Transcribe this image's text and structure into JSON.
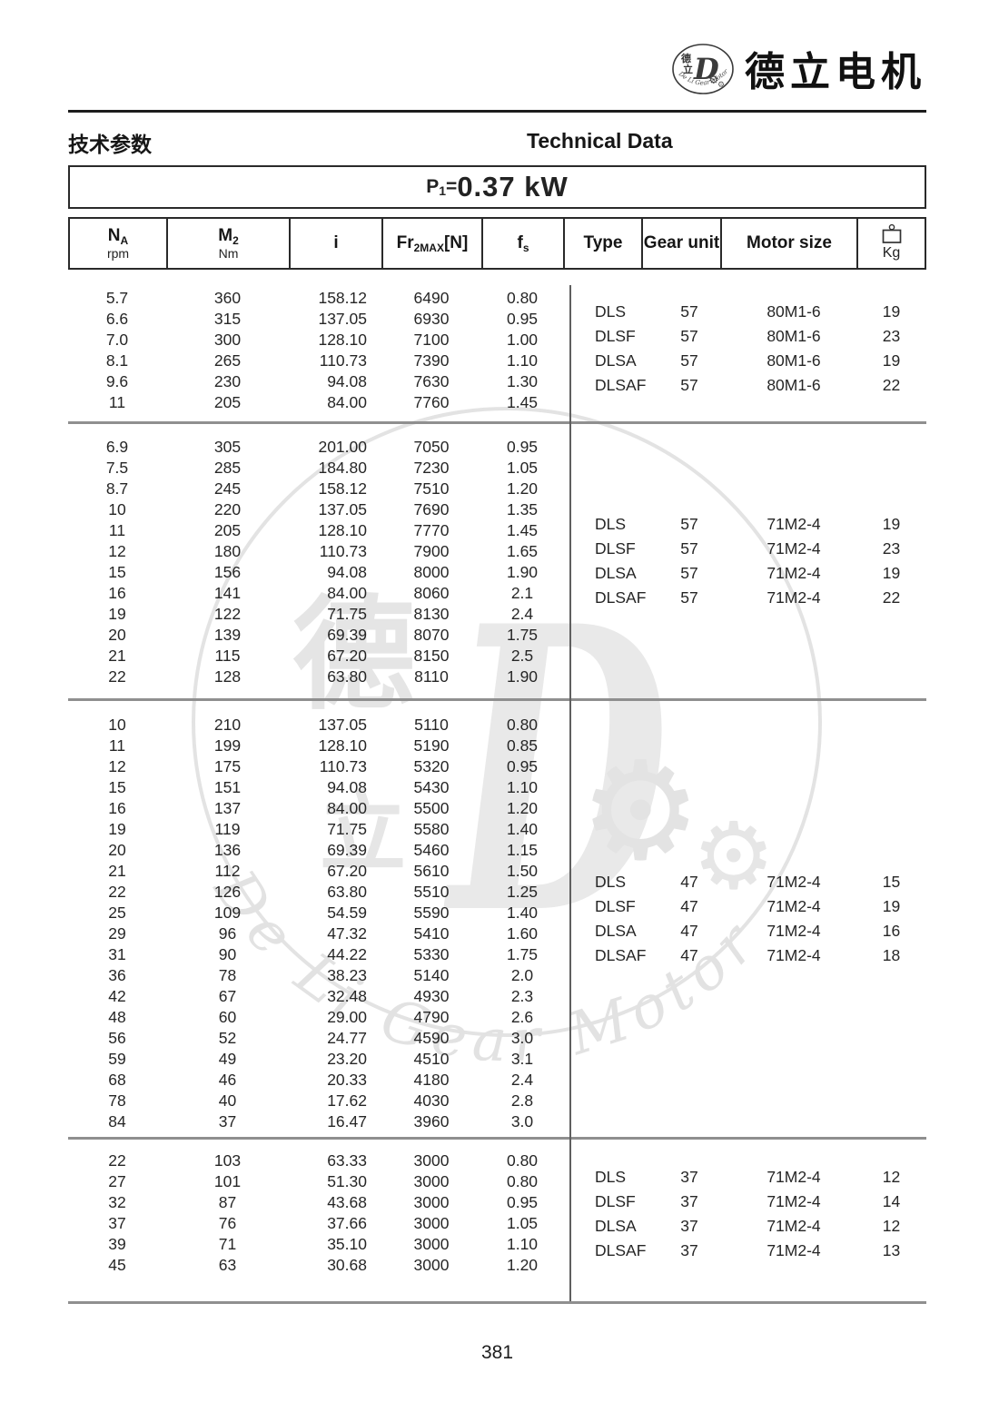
{
  "page_number": "381",
  "header": {
    "brand_cn": "德立电机",
    "logo": {
      "cn_top": "德",
      "cn_bottom": "立",
      "letter": "D",
      "caption": "De Li Gear Motor",
      "gear_glyph": "⚙"
    }
  },
  "titles": {
    "cn": "技术参数",
    "en": "Technical Data"
  },
  "power": {
    "p": "P",
    "p_sub": "1",
    "equals": "=",
    "value": "0.37 kW"
  },
  "table": {
    "header": {
      "na": {
        "sym": "N",
        "sub": "A",
        "unit": "rpm"
      },
      "m2": {
        "sym": "M",
        "sub": "2",
        "unit": "Nm"
      },
      "i": {
        "sym": "i"
      },
      "fr": {
        "sym": "Fr",
        "sub": "2MAX",
        "suffix": "[N]"
      },
      "fs": {
        "sym": "f",
        "sub": "s"
      },
      "type": {
        "label": "Type"
      },
      "gear_unit": {
        "label": "Gear unit"
      },
      "motor_size": {
        "label": "Motor size"
      },
      "kg": {
        "label": "Kg"
      }
    },
    "blocks": [
      {
        "rows": [
          [
            "5.7",
            "360",
            "158.12",
            "6490",
            "0.80"
          ],
          [
            "6.6",
            "315",
            "137.05",
            "6930",
            "0.95"
          ],
          [
            "7.0",
            "300",
            "128.10",
            "7100",
            "1.00"
          ],
          [
            "8.1",
            "265",
            "110.73",
            "7390",
            "1.10"
          ],
          [
            "9.6",
            "230",
            "94.08",
            "7630",
            "1.30"
          ],
          [
            "11",
            "205",
            "84.00",
            "7760",
            "1.45"
          ]
        ],
        "variants": [
          [
            "DLS",
            "57",
            "80M1-6",
            "19"
          ],
          [
            "DLSF",
            "57",
            "80M1-6",
            "23"
          ],
          [
            "DLSA",
            "57",
            "80M1-6",
            "19"
          ],
          [
            "DLSAF",
            "57",
            "80M1-6",
            "22"
          ]
        ]
      },
      {
        "rows": [
          [
            "6.9",
            "305",
            "201.00",
            "7050",
            "0.95"
          ],
          [
            "7.5",
            "285",
            "184.80",
            "7230",
            "1.05"
          ],
          [
            "8.7",
            "245",
            "158.12",
            "7510",
            "1.20"
          ],
          [
            "10",
            "220",
            "137.05",
            "7690",
            "1.35"
          ],
          [
            "11",
            "205",
            "128.10",
            "7770",
            "1.45"
          ],
          [
            "12",
            "180",
            "110.73",
            "7900",
            "1.65"
          ],
          [
            "15",
            "156",
            "94.08",
            "8000",
            "1.90"
          ],
          [
            "16",
            "141",
            "84.00",
            "8060",
            "2.1"
          ],
          [
            "19",
            "122",
            "71.75",
            "8130",
            "2.4"
          ],
          [
            "20",
            "139",
            "69.39",
            "8070",
            "1.75"
          ],
          [
            "21",
            "115",
            "67.20",
            "8150",
            "2.5"
          ],
          [
            "22",
            "128",
            "63.80",
            "8110",
            "1.90"
          ]
        ],
        "variants": [
          [
            "DLS",
            "57",
            "71M2-4",
            "19"
          ],
          [
            "DLSF",
            "57",
            "71M2-4",
            "23"
          ],
          [
            "DLSA",
            "57",
            "71M2-4",
            "19"
          ],
          [
            "DLSAF",
            "57",
            "71M2-4",
            "22"
          ]
        ]
      },
      {
        "rows": [
          [
            "10",
            "210",
            "137.05",
            "5110",
            "0.80"
          ],
          [
            "11",
            "199",
            "128.10",
            "5190",
            "0.85"
          ],
          [
            "12",
            "175",
            "110.73",
            "5320",
            "0.95"
          ],
          [
            "15",
            "151",
            "94.08",
            "5430",
            "1.10"
          ],
          [
            "16",
            "137",
            "84.00",
            "5500",
            "1.20"
          ],
          [
            "19",
            "119",
            "71.75",
            "5580",
            "1.40"
          ],
          [
            "20",
            "136",
            "69.39",
            "5460",
            "1.15"
          ],
          [
            "21",
            "112",
            "67.20",
            "5610",
            "1.50"
          ],
          [
            "22",
            "126",
            "63.80",
            "5510",
            "1.25"
          ],
          [
            "25",
            "109",
            "54.59",
            "5590",
            "1.40"
          ],
          [
            "29",
            "96",
            "47.32",
            "5410",
            "1.60"
          ],
          [
            "31",
            "90",
            "44.22",
            "5330",
            "1.75"
          ],
          [
            "36",
            "78",
            "38.23",
            "5140",
            "2.0"
          ],
          [
            "42",
            "67",
            "32.48",
            "4930",
            "2.3"
          ],
          [
            "48",
            "60",
            "29.00",
            "4790",
            "2.6"
          ],
          [
            "56",
            "52",
            "24.77",
            "4590",
            "3.0"
          ],
          [
            "59",
            "49",
            "23.20",
            "4510",
            "3.1"
          ],
          [
            "68",
            "46",
            "20.33",
            "4180",
            "2.4"
          ],
          [
            "78",
            "40",
            "17.62",
            "4030",
            "2.8"
          ],
          [
            "84",
            "37",
            "16.47",
            "3960",
            "3.0"
          ]
        ],
        "variants": [
          [
            "DLS",
            "47",
            "71M2-4",
            "15"
          ],
          [
            "DLSF",
            "47",
            "71M2-4",
            "19"
          ],
          [
            "DLSA",
            "47",
            "71M2-4",
            "16"
          ],
          [
            "DLSAF",
            "47",
            "71M2-4",
            "18"
          ]
        ]
      },
      {
        "rows": [
          [
            "22",
            "103",
            "63.33",
            "3000",
            "0.80"
          ],
          [
            "27",
            "101",
            "51.30",
            "3000",
            "0.80"
          ],
          [
            "32",
            "87",
            "43.68",
            "3000",
            "0.95"
          ],
          [
            "37",
            "76",
            "37.66",
            "3000",
            "1.05"
          ],
          [
            "39",
            "71",
            "35.10",
            "3000",
            "1.10"
          ],
          [
            "45",
            "63",
            "30.68",
            "3000",
            "1.20"
          ]
        ],
        "variants": [
          [
            "DLS",
            "37",
            "71M2-4",
            "12"
          ],
          [
            "DLSF",
            "37",
            "71M2-4",
            "14"
          ],
          [
            "DLSA",
            "37",
            "71M2-4",
            "12"
          ],
          [
            "DLSAF",
            "37",
            "71M2-4",
            "13"
          ]
        ]
      }
    ]
  },
  "watermark": {
    "cn_top": "德",
    "cn_bottom": "立",
    "letter": "D",
    "script": "De Li Gear Motor",
    "gear_glyph": "⚙"
  }
}
